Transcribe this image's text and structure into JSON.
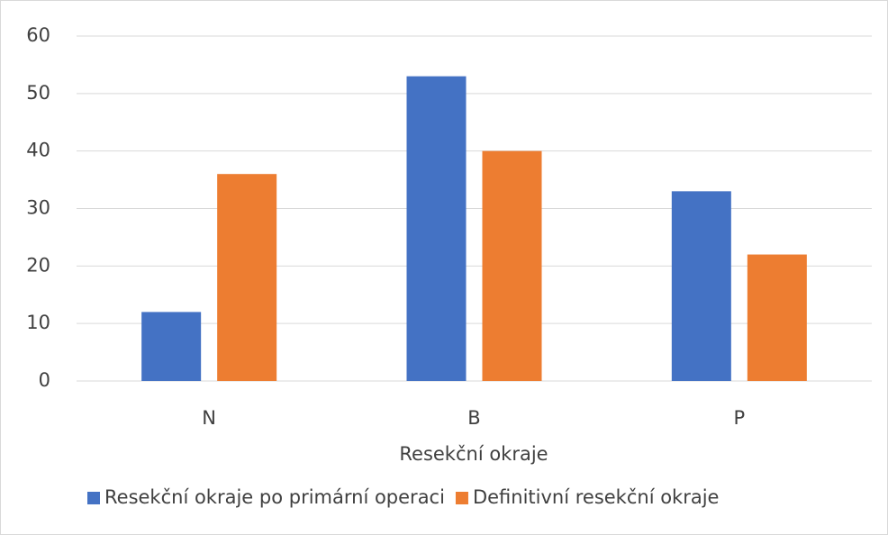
{
  "chart_data": {
    "type": "bar",
    "x_label": "Resekční okraje",
    "categories": [
      "N",
      "B",
      "P"
    ],
    "series": [
      {
        "name": "Resekční okraje po primární operaci",
        "color": "#4472c4",
        "values": [
          12,
          53,
          33
        ]
      },
      {
        "name": "Definitivní resekční okraje",
        "color": "#ed7d31",
        "values": [
          36,
          40,
          22
        ]
      }
    ],
    "ylim": [
      0,
      60
    ],
    "yticks": [
      0,
      10,
      20,
      30,
      40,
      50,
      60
    ],
    "grid": true,
    "legend": "bottom"
  }
}
